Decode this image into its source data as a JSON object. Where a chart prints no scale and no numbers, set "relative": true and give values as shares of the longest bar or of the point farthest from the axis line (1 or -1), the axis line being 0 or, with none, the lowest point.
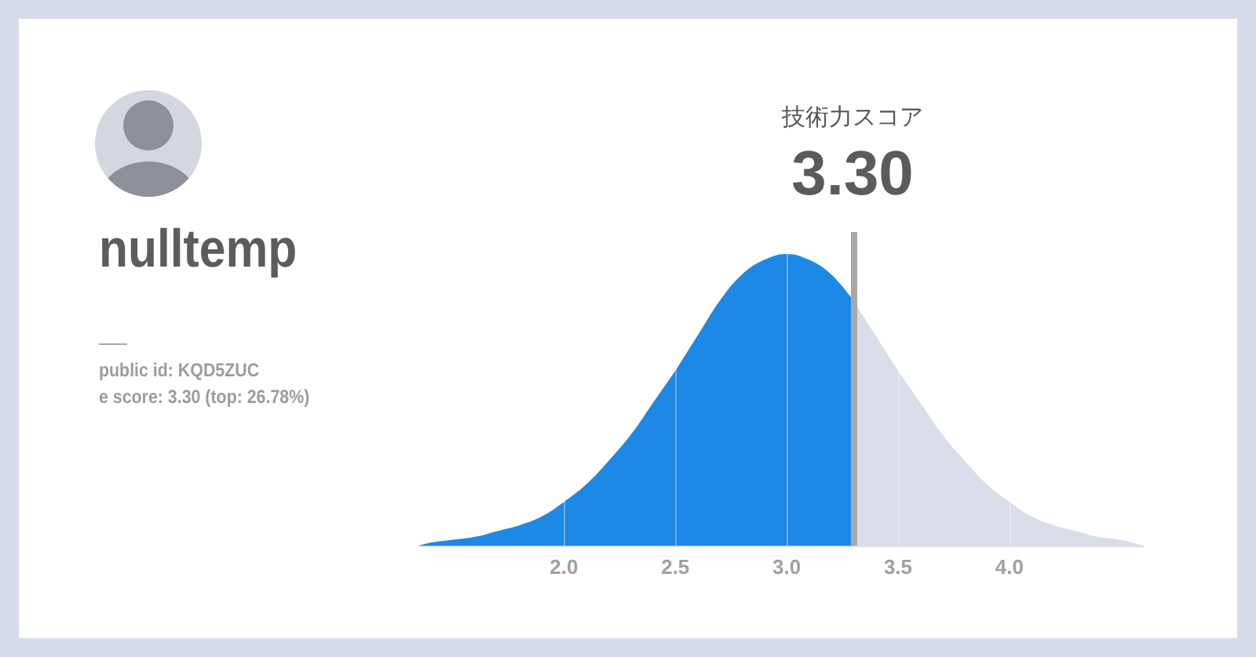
{
  "chart_data": {
    "type": "area",
    "title": "技術力スコア",
    "subtitle": "3.30",
    "relative": true,
    "xlim": [
      1.35,
      4.6
    ],
    "xticks": [
      {
        "value": 2,
        "label": "2.0"
      },
      {
        "value": 2.5,
        "label": "2.5"
      },
      {
        "value": 3,
        "label": "3.0"
      },
      {
        "value": 3.5,
        "label": "3.5"
      },
      {
        "value": 4,
        "label": "4.0"
      }
    ],
    "grid": "x",
    "marker": "none",
    "series": [
      {
        "color": "#1e88e5",
        "x": [
          1.35,
          1.4,
          1.5,
          1.6,
          1.7,
          1.8,
          1.9,
          2.0,
          2.1,
          2.2,
          2.3,
          2.4,
          2.5,
          2.6,
          2.7,
          2.8,
          2.9,
          3.0,
          3.1,
          3.2,
          3.3
        ],
        "values": [
          0,
          0.01,
          0.02,
          0.03,
          0.05,
          0.07,
          0.1,
          0.15,
          0.21,
          0.29,
          0.38,
          0.49,
          0.6,
          0.72,
          0.84,
          0.93,
          0.98,
          1,
          0.98,
          0.93,
          0.84
        ]
      },
      {
        "color": "#d8dde9",
        "x": [
          3.3,
          3.4,
          3.5,
          3.6,
          3.7,
          3.8,
          3.9,
          4.0,
          4.1,
          4.2,
          4.3,
          4.4,
          4.5,
          4.6
        ],
        "values": [
          0.84,
          0.72,
          0.6,
          0.49,
          0.38,
          0.29,
          0.21,
          0.15,
          0.1,
          0.07,
          0.05,
          0.03,
          0.02,
          0
        ]
      }
    ],
    "ref_lines": [
      {
        "axis": "x",
        "value": 3.3,
        "color": "#a8a8a8"
      }
    ],
    "annotations": [
      "nulltemp",
      "public id: KQD5ZUC",
      "e score: 3.30 (top: 26.78%)"
    ]
  }
}
